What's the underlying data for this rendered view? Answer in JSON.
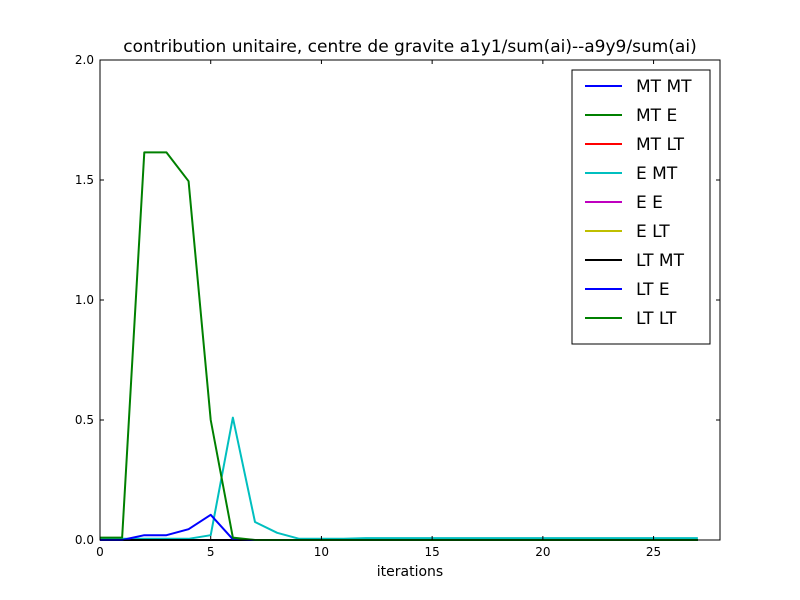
{
  "chart_data": {
    "type": "line",
    "title": "contribution unitaire, centre de gravite a1y1/sum(ai)--a9y9/sum(ai)",
    "xlabel": "iterations",
    "ylabel": "",
    "xlim": [
      0,
      28
    ],
    "ylim": [
      0,
      2.0
    ],
    "xticks": [
      0,
      5,
      10,
      15,
      20,
      25
    ],
    "yticks": [
      0.0,
      0.5,
      1.0,
      1.5,
      2.0
    ],
    "xtick_labels": [
      "0",
      "5",
      "10",
      "15",
      "20",
      "25"
    ],
    "ytick_labels": [
      "0.0",
      "0.5",
      "1.0",
      "1.5",
      "2.0"
    ],
    "grid": false,
    "legend_position": "top-right",
    "x": [
      0,
      1,
      2,
      3,
      4,
      5,
      6,
      7,
      8,
      9,
      10,
      11,
      12,
      13,
      14,
      15,
      16,
      17,
      18,
      19,
      20,
      21,
      22,
      23,
      24,
      25,
      26,
      27
    ],
    "series": [
      {
        "name": "MT MT",
        "color": "#0000ff",
        "values": [
          0,
          0,
          0,
          0,
          0,
          0,
          0,
          0,
          0,
          0,
          0,
          0,
          0,
          0,
          0,
          0,
          0,
          0,
          0,
          0,
          0,
          0,
          0,
          0,
          0,
          0,
          0,
          0
        ]
      },
      {
        "name": "MT E",
        "color": "#008000",
        "values": [
          0,
          0,
          0,
          0,
          0,
          0,
          0,
          0,
          0,
          0,
          0,
          0,
          0,
          0,
          0,
          0,
          0,
          0,
          0,
          0,
          0,
          0,
          0,
          0,
          0,
          0,
          0,
          0
        ]
      },
      {
        "name": "MT LT",
        "color": "#ff0000",
        "values": [
          0,
          0,
          0,
          0,
          0,
          0,
          0,
          0,
          0,
          0,
          0,
          0,
          0,
          0,
          0,
          0,
          0,
          0,
          0,
          0,
          0,
          0,
          0,
          0,
          0,
          0,
          0,
          0
        ]
      },
      {
        "name": "E MT",
        "color": "#00bfbf",
        "values": [
          0.005,
          0.005,
          0.005,
          0.005,
          0.005,
          0.02,
          0.51,
          0.075,
          0.03,
          0.005,
          0.005,
          0.005,
          0.008,
          0.008,
          0.008,
          0.008,
          0.008,
          0.008,
          0.008,
          0.008,
          0.008,
          0.008,
          0.008,
          0.008,
          0.008,
          0.008,
          0.008,
          0.008
        ]
      },
      {
        "name": "E E",
        "color": "#bf00bf",
        "values": [
          0,
          0,
          0,
          0,
          0,
          0,
          0,
          0,
          0,
          0,
          0,
          0,
          0,
          0,
          0,
          0,
          0,
          0,
          0,
          0,
          0,
          0,
          0,
          0,
          0,
          0,
          0,
          0
        ]
      },
      {
        "name": "E LT",
        "color": "#bfbf00",
        "values": [
          0,
          0,
          0,
          0,
          0,
          0,
          0,
          0,
          0,
          0,
          0,
          0,
          0,
          0,
          0,
          0,
          0,
          0,
          0,
          0,
          0,
          0,
          0,
          0,
          0,
          0,
          0,
          0
        ]
      },
      {
        "name": "LT MT",
        "color": "#000000",
        "values": [
          0,
          0,
          0,
          0,
          0,
          0,
          0,
          0,
          0,
          0,
          0,
          0,
          0,
          0,
          0,
          0,
          0,
          0,
          0,
          0,
          0,
          0,
          0,
          0,
          0,
          0,
          0,
          0
        ]
      },
      {
        "name": "LT E",
        "color": "#0000ff",
        "values": [
          0,
          0,
          0.02,
          0.02,
          0.045,
          0.105,
          0.003,
          0,
          0,
          0,
          0,
          0,
          0,
          0,
          0,
          0,
          0,
          0,
          0,
          0,
          0,
          0,
          0,
          0,
          0,
          0,
          0,
          0
        ]
      },
      {
        "name": "LT LT",
        "color": "#008000",
        "values": [
          0.01,
          0.01,
          1.615,
          1.615,
          1.495,
          0.5,
          0.01,
          0,
          0,
          0,
          0,
          0,
          0,
          0,
          0,
          0,
          0,
          0,
          0,
          0,
          0,
          0,
          0,
          0,
          0,
          0,
          0,
          0
        ]
      }
    ]
  }
}
